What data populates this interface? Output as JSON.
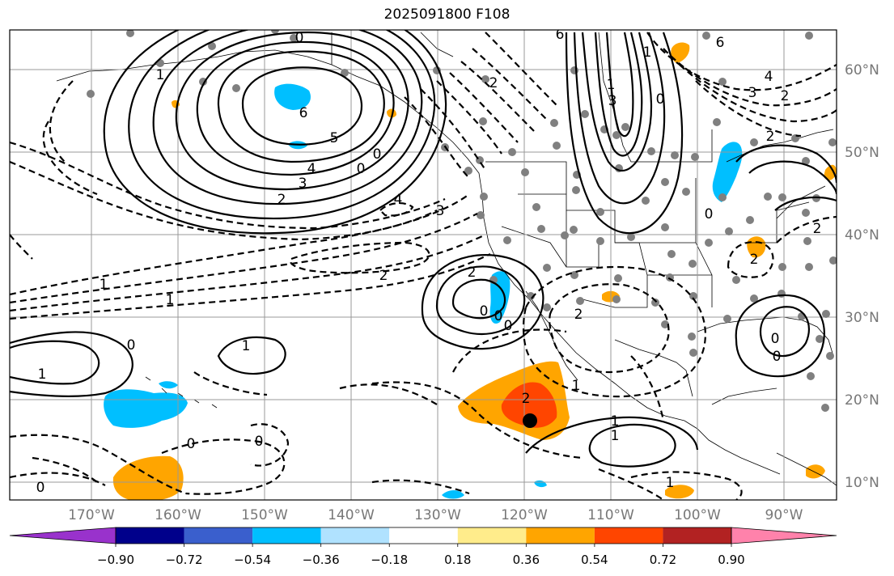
{
  "title": "2025091800 F108",
  "map": {
    "lat_labels": [
      "60°N",
      "50°N",
      "40°N",
      "30°N",
      "20°N",
      "10°N"
    ],
    "lon_labels": [
      "170°W",
      "160°W",
      "150°W",
      "140°W",
      "130°W",
      "120°W",
      "110°W",
      "100°W",
      "90°W"
    ],
    "contour_labels": [
      "0",
      "1",
      "6",
      "5",
      "4",
      "3",
      "2",
      "0",
      "0",
      "6",
      "2",
      "1",
      "1",
      "3",
      "0",
      "6",
      "4",
      "3",
      "2",
      "2",
      "4",
      "3",
      "2",
      "1",
      "1",
      "2",
      "0",
      "0",
      "1",
      "1",
      "2",
      "0",
      "1",
      "2",
      "0",
      "1",
      "1",
      "0",
      "0",
      "0",
      "1",
      "0",
      "2",
      "0",
      "0",
      "2"
    ],
    "marker": "forecast-location"
  },
  "colorbar": {
    "tick_labels": [
      "−0.90",
      "−0.72",
      "−0.54",
      "−0.36",
      "−0.18",
      "0.18",
      "0.36",
      "0.54",
      "0.72",
      "0.90"
    ],
    "colors": [
      "#9932cc",
      "#00008b",
      "#3a5fcd",
      "#00bfff",
      "#b0e2ff",
      "#ffffff",
      "#ffec8b",
      "#ffa500",
      "#ff4500",
      "#b22222",
      "#ff82ab"
    ]
  }
}
